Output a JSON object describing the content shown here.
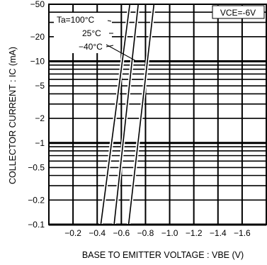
{
  "chart_data": {
    "type": "line",
    "xlabel": "BASE TO EMITTER VOLTAGE : VBE (V)",
    "ylabel": "COLLECTOR CURRENT : IC (mA)",
    "condition": "VCE=-6V",
    "x_scale": "linear",
    "y_scale": "log",
    "xlim": [
      -0.0,
      -1.8
    ],
    "ylim": [
      -0.1,
      -50
    ],
    "x_ticks": [
      -0.2,
      -0.4,
      -0.6,
      -0.8,
      -1.0,
      -1.2,
      -1.4,
      -1.6
    ],
    "x_tick_labels": [
      "−0.2",
      "−0.4",
      "−0.6",
      "−0.8",
      "−1.0",
      "−1.2",
      "−1.4",
      "−1.6"
    ],
    "y_ticks": [
      -50,
      -20,
      -10,
      -5,
      -2,
      -1,
      -0.5,
      -0.2,
      -0.1
    ],
    "y_tick_labels": [
      "−50",
      "−20",
      "−10",
      "−5",
      "−2",
      "−1",
      "−0.5",
      "−0.2",
      "−0.1"
    ],
    "grid": true,
    "series": [
      {
        "name": "Ta=100°C",
        "x": [
          -0.43,
          -0.67
        ],
        "y": [
          -0.1,
          -50
        ]
      },
      {
        "name": "25°C",
        "x": [
          -0.54,
          -0.74
        ],
        "y": [
          -0.1,
          -50
        ]
      },
      {
        "name": "−40°C",
        "x": [
          -0.66,
          -0.87
        ],
        "y": [
          -0.1,
          -50
        ]
      }
    ]
  }
}
